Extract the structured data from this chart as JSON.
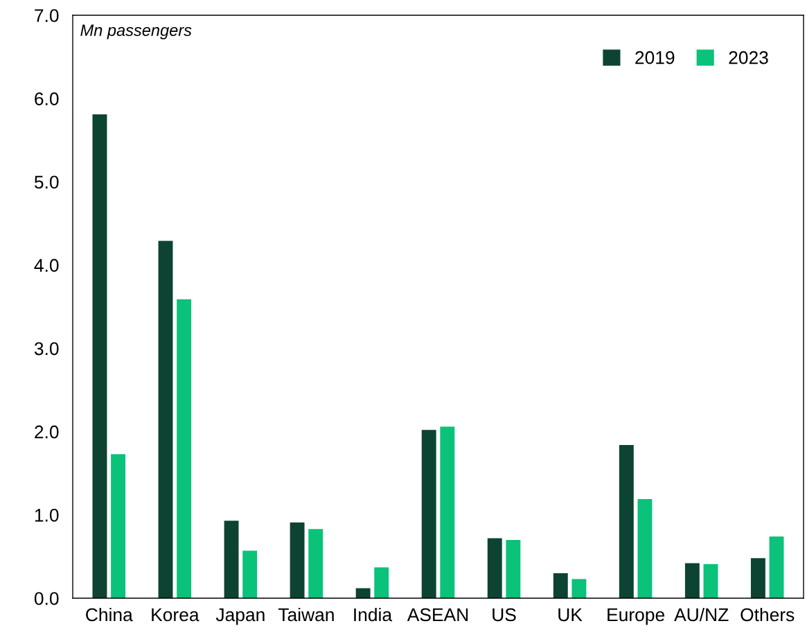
{
  "chart_data": {
    "type": "bar",
    "categories": [
      "China",
      "Korea",
      "Japan",
      "Taiwan",
      "India",
      "ASEAN",
      "US",
      "UK",
      "Europe",
      "AU/NZ",
      "Others"
    ],
    "series": [
      {
        "name": "2019",
        "color": "#0d4332",
        "values": [
          5.81,
          4.29,
          0.93,
          0.91,
          0.12,
          2.02,
          0.72,
          0.3,
          1.84,
          0.42,
          0.48
        ]
      },
      {
        "name": "2023",
        "color": "#0ac27a",
        "values": [
          1.73,
          3.59,
          0.57,
          0.83,
          0.37,
          2.06,
          0.7,
          0.23,
          1.19,
          0.41,
          0.74
        ]
      }
    ],
    "ylim": [
      0,
      7
    ],
    "yticks": [
      {
        "value": 0,
        "label": "0.0"
      },
      {
        "value": 1,
        "label": "1.0"
      },
      {
        "value": 2,
        "label": "2.0"
      },
      {
        "value": 3,
        "label": "3.0"
      },
      {
        "value": 4,
        "label": "4.0"
      },
      {
        "value": 5,
        "label": "5.0"
      },
      {
        "value": 6,
        "label": "6.0"
      },
      {
        "value": 7,
        "label": "7.0"
      }
    ],
    "annotations": [
      "Mn passengers"
    ],
    "legend": "top right",
    "grid": false
  }
}
